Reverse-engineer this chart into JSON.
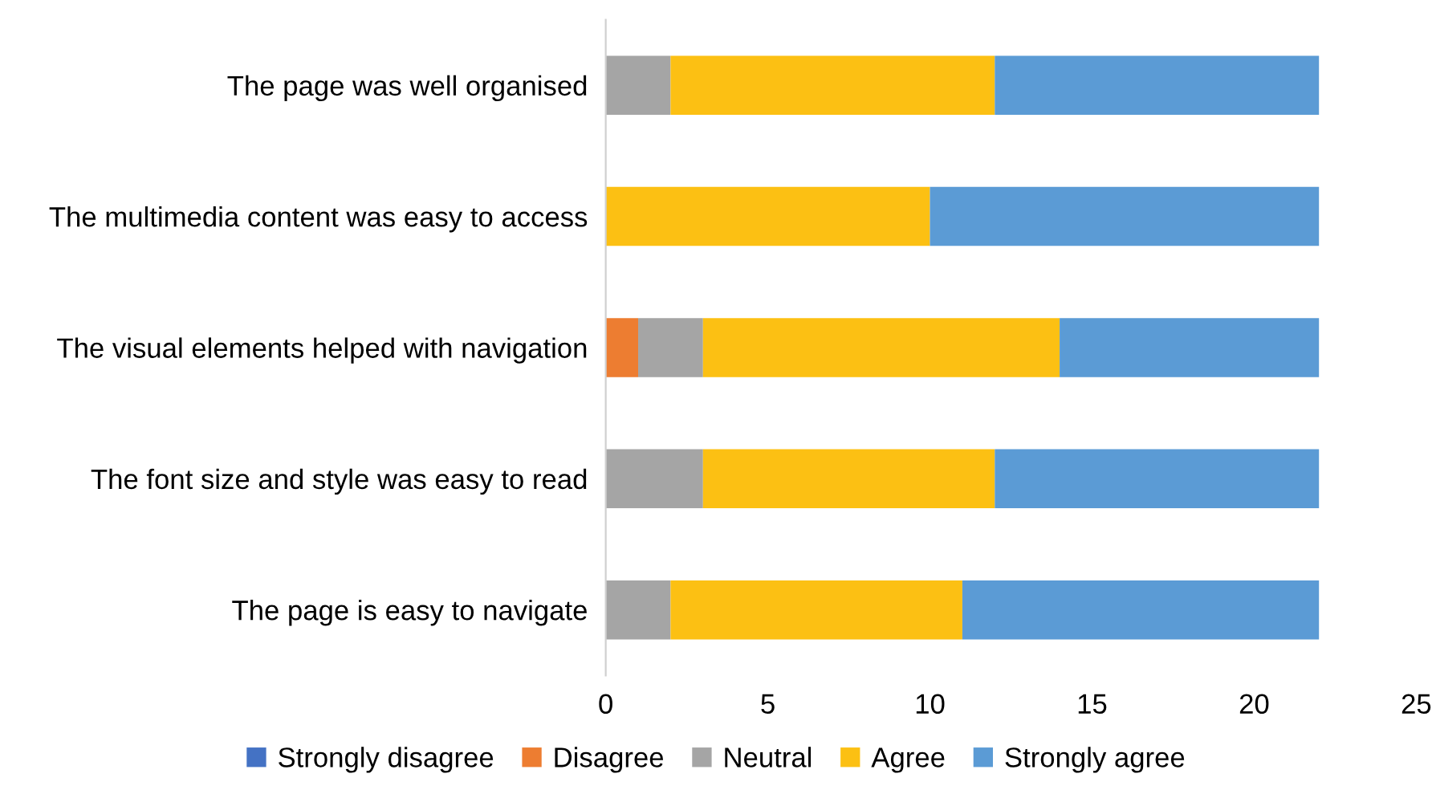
{
  "chart_data": {
    "type": "bar",
    "orientation": "horizontal",
    "stacked": true,
    "categories": [
      "The page was well organised",
      "The multimedia content was easy to access",
      "The visual elements helped with navigation",
      "The font size and style was easy to read",
      "The page is easy to navigate"
    ],
    "series": [
      {
        "name": "Strongly disagree",
        "color": "#4472c4",
        "values": [
          0,
          0,
          0,
          0,
          0
        ]
      },
      {
        "name": "Disagree",
        "color": "#ed7d31",
        "values": [
          0,
          0,
          1,
          0,
          0
        ]
      },
      {
        "name": "Neutral",
        "color": "#a5a5a5",
        "values": [
          2,
          0,
          2,
          3,
          2
        ]
      },
      {
        "name": "Agree",
        "color": "#fcc013",
        "values": [
          10,
          10,
          11,
          9,
          9
        ]
      },
      {
        "name": "Strongly agree",
        "color": "#5b9bd5",
        "values": [
          10,
          12,
          8,
          10,
          11
        ]
      }
    ],
    "xlim": [
      0,
      25
    ],
    "xticks": [
      0,
      5,
      10,
      15,
      20,
      25
    ],
    "grid": false,
    "legend": "bottom"
  }
}
